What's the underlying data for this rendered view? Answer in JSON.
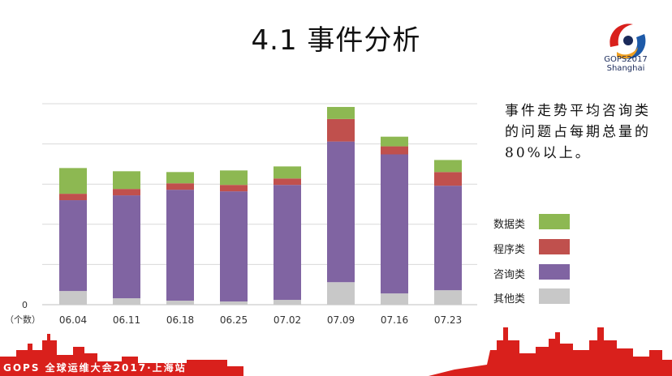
{
  "slide": {
    "title": "4.1 事件分析",
    "logo_text_line1": "GOPS2017",
    "logo_text_line2": "Shanghai",
    "footer": "GOPS 全球运维大会2017·上海站"
  },
  "note": "事件走势平均咨询类的问题占每期总量的80%以上。",
  "colors": {
    "其他类": "#c8c8c8",
    "咨询类": "#8064a2",
    "程序类": "#c0504d",
    "数据类": "#8db852",
    "accent_red": "#d9201c"
  },
  "chart_data": {
    "type": "bar",
    "stacked": true,
    "categories": [
      "06.04",
      "06.11",
      "06.18",
      "06.25",
      "07.02",
      "07.09",
      "07.16",
      "07.23"
    ],
    "series": [
      {
        "name": "其他类",
        "values": [
          17,
          8,
          5,
          4,
          6,
          28,
          14,
          18
        ]
      },
      {
        "name": "咨询类",
        "values": [
          113,
          128,
          138,
          137,
          143,
          175,
          173,
          130
        ]
      },
      {
        "name": "程序类",
        "values": [
          8,
          8,
          8,
          8,
          8,
          28,
          10,
          17
        ]
      },
      {
        "name": "数据类",
        "values": [
          32,
          22,
          14,
          18,
          15,
          15,
          12,
          15
        ]
      }
    ],
    "legend": [
      "数据类",
      "程序类",
      "咨询类",
      "其他类"
    ],
    "legend_position": "right",
    "y_tick_zero": "0",
    "y_unit_label": "（个数）",
    "ylim": [
      0,
      250
    ],
    "grid": true
  }
}
